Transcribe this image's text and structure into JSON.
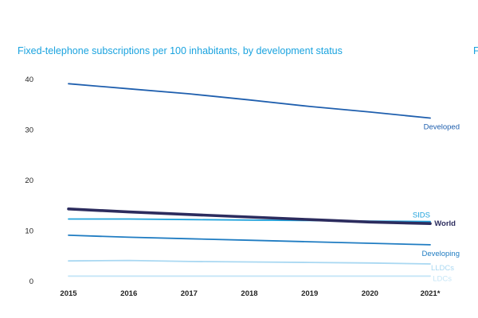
{
  "chart_data": {
    "type": "line",
    "title": "Fixed-telephone subscriptions per 100 inhabitants, by development status",
    "title_cut": "F",
    "xlabel": "",
    "ylabel": "",
    "categories": [
      "2015",
      "2016",
      "2017",
      "2018",
      "2019",
      "2020",
      "2021*"
    ],
    "y_ticks": [
      "0",
      "10",
      "20",
      "30",
      "40"
    ],
    "y_tick_values": [
      0,
      10,
      20,
      30,
      40
    ],
    "ylim": [
      0,
      41
    ],
    "grid": false,
    "series": [
      {
        "name": "Developed",
        "values": [
          39.0,
          38.0,
          37.0,
          35.8,
          34.5,
          33.4,
          32.2
        ],
        "color": "#1f5fae",
        "label_bold": false
      },
      {
        "name": "SIDS",
        "values": [
          12.2,
          12.2,
          12.1,
          12.0,
          11.9,
          11.8,
          11.7
        ],
        "color": "#21a3dc",
        "label_bold": false
      },
      {
        "name": "World",
        "values": [
          14.2,
          13.6,
          13.1,
          12.6,
          12.1,
          11.6,
          11.3
        ],
        "color": "#2c2c5e",
        "label_bold": true
      },
      {
        "name": "Developing",
        "values": [
          9.0,
          8.6,
          8.3,
          8.0,
          7.7,
          7.4,
          7.1
        ],
        "color": "#1f7cc2",
        "label_bold": false
      },
      {
        "name": "LLDCs",
        "values": [
          3.9,
          4.0,
          3.8,
          3.7,
          3.6,
          3.5,
          3.3
        ],
        "color": "#a9d8f2",
        "label_bold": false
      },
      {
        "name": "LDCs",
        "values": [
          0.9,
          0.9,
          0.9,
          0.9,
          0.9,
          0.9,
          0.9
        ],
        "color": "#c6e6f7",
        "label_bold": false
      }
    ]
  }
}
